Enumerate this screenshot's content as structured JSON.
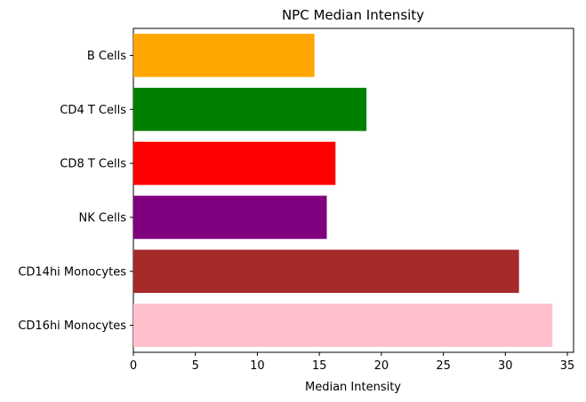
{
  "chart_data": {
    "type": "bar",
    "orientation": "horizontal",
    "title": "NPC Median Intensity",
    "xlabel": "Median Intensity",
    "ylabel": "",
    "xlim": [
      0,
      35.5
    ],
    "xticks": [
      "0",
      "5",
      "10",
      "15",
      "20",
      "25",
      "30",
      "35"
    ],
    "grid": false,
    "categories": [
      "B Cells",
      "CD4 T Cells",
      "CD8 T Cells",
      "NK Cells",
      "CD14hi Monocytes",
      "CD16hi Monocytes"
    ],
    "values": [
      14.6,
      18.8,
      16.3,
      15.6,
      31.1,
      33.8
    ],
    "colors": [
      "#ffa500",
      "#008000",
      "#ff0000",
      "#800080",
      "#a52a2a",
      "#ffc0cb"
    ]
  }
}
